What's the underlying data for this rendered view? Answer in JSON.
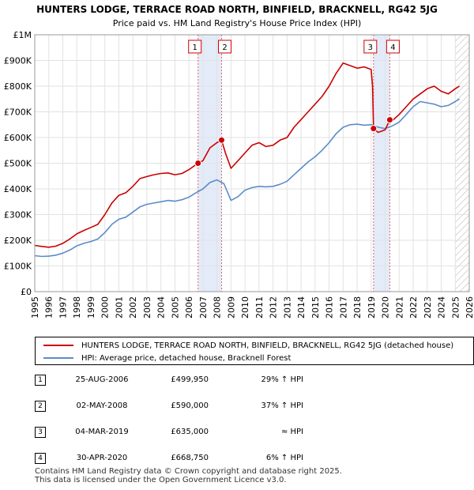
{
  "chart_data": {
    "type": "line",
    "title": "HUNTERS LODGE, TERRACE ROAD NORTH, BINFIELD, BRACKNELL, RG42 5JG",
    "subtitle": "Price paid vs. HM Land Registry's House Price Index (HPI)",
    "xlabel": "",
    "ylabel": "",
    "xlim": [
      1995,
      2026
    ],
    "ylim": [
      0,
      1000000
    ],
    "x_ticks": [
      "1995",
      "1996",
      "1997",
      "1998",
      "1999",
      "2000",
      "2001",
      "2002",
      "2003",
      "2004",
      "2005",
      "2006",
      "2007",
      "2008",
      "2009",
      "2010",
      "2011",
      "2012",
      "2013",
      "2014",
      "2015",
      "2016",
      "2017",
      "2018",
      "2019",
      "2020",
      "2021",
      "2022",
      "2023",
      "2024",
      "2025",
      "2026"
    ],
    "y_ticks": [
      {
        "value": 0,
        "label": "£0"
      },
      {
        "value": 100000,
        "label": "£100K"
      },
      {
        "value": 200000,
        "label": "£200K"
      },
      {
        "value": 300000,
        "label": "£300K"
      },
      {
        "value": 400000,
        "label": "£400K"
      },
      {
        "value": 500000,
        "label": "£500K"
      },
      {
        "value": 600000,
        "label": "£600K"
      },
      {
        "value": 700000,
        "label": "£700K"
      },
      {
        "value": 800000,
        "label": "£800K"
      },
      {
        "value": 900000,
        "label": "£900K"
      },
      {
        "value": 1000000,
        "label": "£1M"
      }
    ],
    "grid": true,
    "forecast_from": 2025.0,
    "shaded_ranges": [
      [
        2006.65,
        2008.33
      ],
      [
        2019.17,
        2020.33
      ]
    ],
    "series": [
      {
        "name": "HUNTERS LODGE, TERRACE ROAD NORTH, BINFIELD, BRACKNELL, RG42 5JG (detached house)",
        "color": "#cc0000",
        "x": [
          1995.0,
          1995.5,
          1996.0,
          1996.5,
          1997.0,
          1997.5,
          1998.0,
          1998.5,
          1999.0,
          1999.5,
          2000.0,
          2000.5,
          2001.0,
          2001.5,
          2002.0,
          2002.5,
          2003.0,
          2003.5,
          2004.0,
          2004.5,
          2005.0,
          2005.5,
          2006.0,
          2006.65,
          2007.0,
          2007.5,
          2008.0,
          2008.33,
          2008.6,
          2009.0,
          2009.5,
          2010.0,
          2010.5,
          2011.0,
          2011.5,
          2012.0,
          2012.5,
          2013.0,
          2013.5,
          2014.0,
          2014.5,
          2015.0,
          2015.5,
          2016.0,
          2016.5,
          2017.0,
          2017.5,
          2018.0,
          2018.5,
          2019.0,
          2019.1,
          2019.17,
          2019.5,
          2020.0,
          2020.33,
          2020.5,
          2021.0,
          2021.5,
          2022.0,
          2022.5,
          2023.0,
          2023.5,
          2024.0,
          2024.5,
          2025.0,
          2025.3
        ],
        "values": [
          180000,
          176000,
          173000,
          177000,
          188000,
          205000,
          225000,
          238000,
          250000,
          262000,
          300000,
          345000,
          375000,
          385000,
          410000,
          440000,
          448000,
          455000,
          460000,
          462000,
          455000,
          460000,
          475000,
          499950,
          510000,
          560000,
          580000,
          590000,
          540000,
          480000,
          510000,
          540000,
          570000,
          580000,
          565000,
          570000,
          590000,
          600000,
          640000,
          670000,
          700000,
          730000,
          760000,
          800000,
          850000,
          890000,
          880000,
          870000,
          875000,
          865000,
          800000,
          635000,
          620000,
          630000,
          668750,
          665000,
          690000,
          720000,
          750000,
          770000,
          790000,
          800000,
          780000,
          770000,
          790000,
          800000
        ]
      },
      {
        "name": "HPI: Average price, detached house, Bracknell Forest",
        "color": "#5b8cc8",
        "x": [
          1995.0,
          1995.5,
          1996.0,
          1996.5,
          1997.0,
          1997.5,
          1998.0,
          1998.5,
          1999.0,
          1999.5,
          2000.0,
          2000.5,
          2001.0,
          2001.5,
          2002.0,
          2002.5,
          2003.0,
          2003.5,
          2004.0,
          2004.5,
          2005.0,
          2005.5,
          2006.0,
          2006.5,
          2007.0,
          2007.5,
          2008.0,
          2008.5,
          2009.0,
          2009.5,
          2010.0,
          2010.5,
          2011.0,
          2011.5,
          2012.0,
          2012.5,
          2013.0,
          2013.5,
          2014.0,
          2014.5,
          2015.0,
          2015.5,
          2016.0,
          2016.5,
          2017.0,
          2017.5,
          2018.0,
          2018.5,
          2019.0,
          2019.5,
          2020.0,
          2020.5,
          2021.0,
          2021.5,
          2022.0,
          2022.5,
          2023.0,
          2023.5,
          2024.0,
          2024.5,
          2025.0,
          2025.3
        ],
        "values": [
          140000,
          137000,
          138000,
          142000,
          150000,
          162000,
          178000,
          188000,
          195000,
          205000,
          230000,
          262000,
          282000,
          290000,
          310000,
          330000,
          340000,
          345000,
          350000,
          355000,
          352000,
          358000,
          368000,
          385000,
          400000,
          425000,
          435000,
          420000,
          355000,
          370000,
          395000,
          405000,
          410000,
          408000,
          410000,
          418000,
          430000,
          455000,
          480000,
          505000,
          525000,
          550000,
          580000,
          615000,
          640000,
          650000,
          652000,
          648000,
          650000,
          640000,
          635000,
          645000,
          660000,
          690000,
          720000,
          740000,
          735000,
          730000,
          720000,
          725000,
          740000,
          750000
        ]
      }
    ],
    "transactions": [
      {
        "marker": "1",
        "date": "25-AUG-2006",
        "x": 2006.65,
        "price": 499950,
        "price_label": "£499,950",
        "hpi_note": "29% ↑ HPI"
      },
      {
        "marker": "2",
        "date": "02-MAY-2008",
        "x": 2008.33,
        "price": 590000,
        "price_label": "£590,000",
        "hpi_note": "37% ↑ HPI"
      },
      {
        "marker": "3",
        "date": "04-MAR-2019",
        "x": 2019.17,
        "price": 635000,
        "price_label": "£635,000",
        "hpi_note": "≈ HPI"
      },
      {
        "marker": "4",
        "date": "30-APR-2020",
        "x": 2020.33,
        "price": 668750,
        "price_label": "£668,750",
        "hpi_note": "6% ↑ HPI"
      }
    ]
  },
  "legend": {
    "property_label": "HUNTERS LODGE, TERRACE ROAD NORTH, BINFIELD, BRACKNELL, RG42 5JG (detached house)",
    "hpi_label": "HPI: Average price, detached house, Bracknell Forest",
    "property_color": "#cc0000",
    "hpi_color": "#5b8cc8"
  },
  "footer": {
    "line1": "Contains HM Land Registry data © Crown copyright and database right 2025.",
    "line2": "This data is licensed under the Open Government Licence v3.0."
  }
}
